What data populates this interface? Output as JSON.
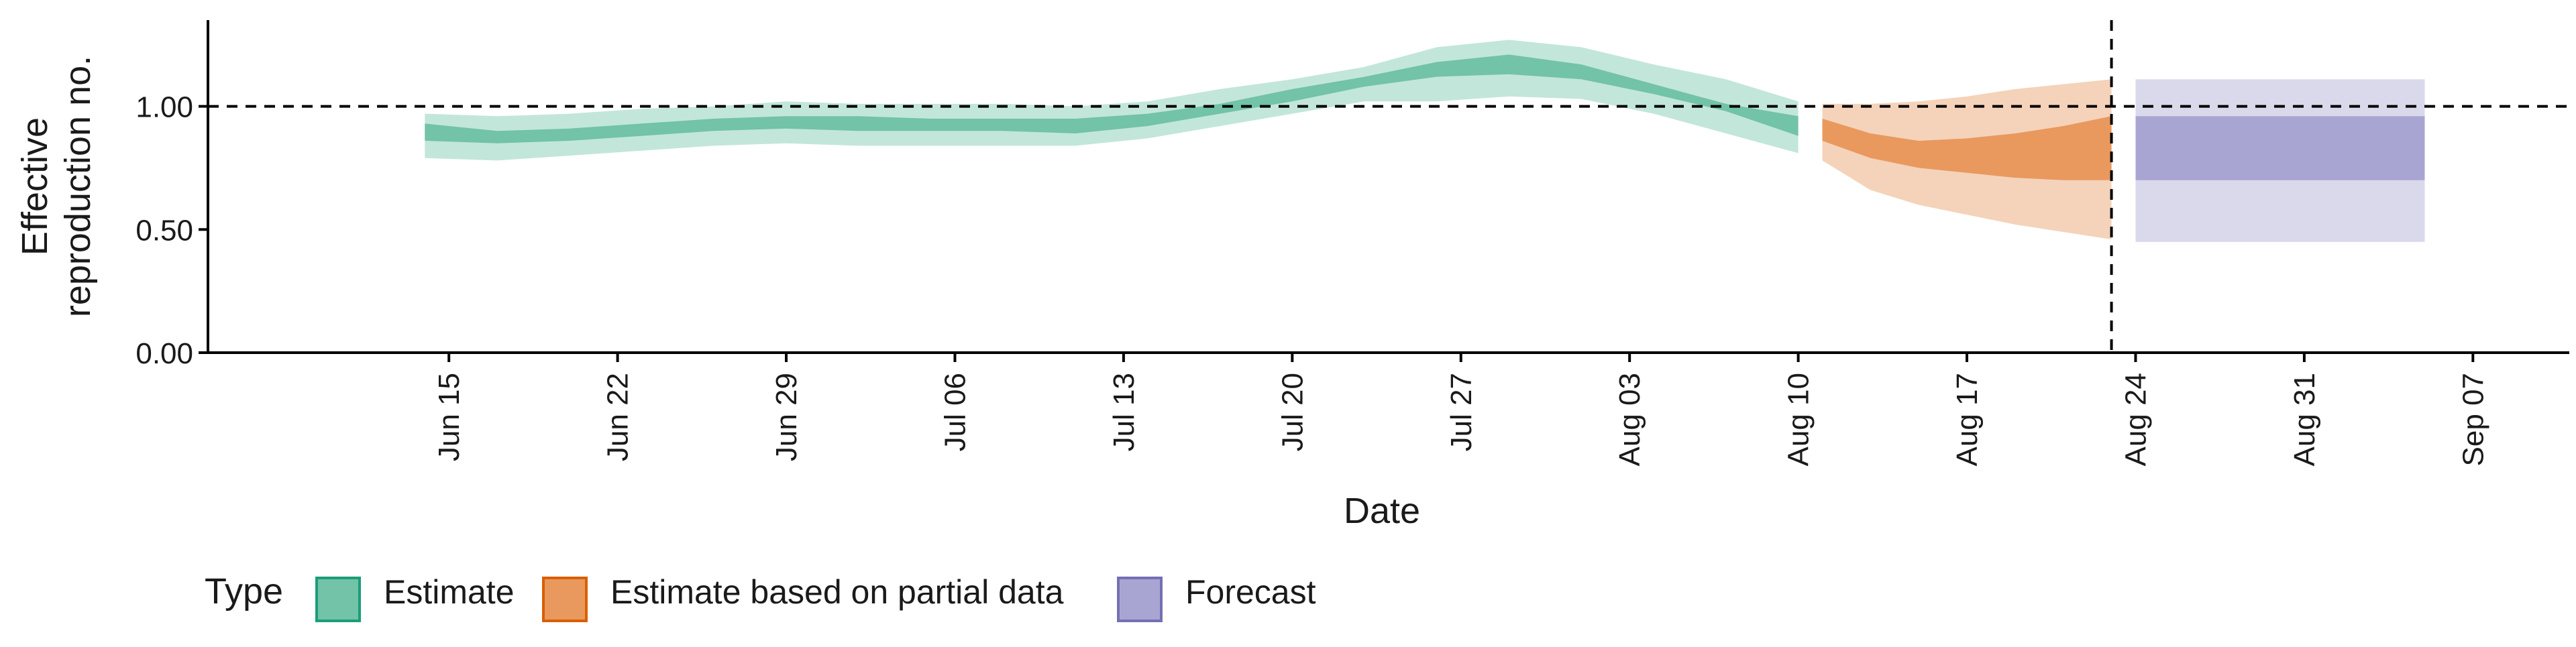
{
  "chart_data": {
    "type": "area",
    "xlabel": "Date",
    "ylabel_lines": [
      "Effective",
      "reproduction no."
    ],
    "ylim": [
      0,
      1.35
    ],
    "yticks": [
      0.0,
      0.5,
      1.0
    ],
    "ytick_labels": [
      "0.00",
      "0.50",
      "1.00"
    ],
    "xlim": [
      "2020-06-05",
      "2020-09-11"
    ],
    "xticks": [
      "2020-06-15",
      "2020-06-22",
      "2020-06-29",
      "2020-07-06",
      "2020-07-13",
      "2020-07-20",
      "2020-07-27",
      "2020-08-03",
      "2020-08-10",
      "2020-08-17",
      "2020-08-24",
      "2020-08-31",
      "2020-09-07"
    ],
    "xtick_labels": [
      "Jun 15",
      "Jun 22",
      "Jun 29",
      "Jul 06",
      "Jul 13",
      "Jul 20",
      "Jul 27",
      "Aug 03",
      "Aug 10",
      "Aug 17",
      "Aug 24",
      "Aug 31",
      "Sep 07"
    ],
    "reference_hline": 1.0,
    "reference_vline": "2020-08-23",
    "legend": {
      "title": "Type",
      "position": "bottom-left",
      "items": [
        {
          "label": "Estimate",
          "fill": "#72C3A8",
          "border": "#1B9E77"
        },
        {
          "label": "Estimate based on partial data",
          "fill": "#E9995E",
          "border": "#D95F02"
        },
        {
          "label": "Forecast",
          "fill": "#A9A5D2",
          "border": "#7570B3"
        }
      ]
    },
    "colors": {
      "estimate_outer": "#C3E6DA",
      "estimate_inner": "#72C3A8",
      "partial_outer": "#F4D3BA",
      "partial_inner": "#E9995E",
      "forecast_outer": "#DAD9EB",
      "forecast_inner": "#A9A5D2"
    },
    "series": [
      {
        "name": "Estimate",
        "x": [
          "2020-06-14",
          "2020-06-17",
          "2020-06-20",
          "2020-06-23",
          "2020-06-26",
          "2020-06-29",
          "2020-07-02",
          "2020-07-05",
          "2020-07-08",
          "2020-07-11",
          "2020-07-14",
          "2020-07-17",
          "2020-07-20",
          "2020-07-23",
          "2020-07-26",
          "2020-07-29",
          "2020-08-01",
          "2020-08-04",
          "2020-08-07",
          "2020-08-10"
        ],
        "outer_upper": [
          0.97,
          0.96,
          0.97,
          0.99,
          1.0,
          1.02,
          1.01,
          1.01,
          1.01,
          1.0,
          1.02,
          1.07,
          1.11,
          1.16,
          1.24,
          1.27,
          1.24,
          1.17,
          1.11,
          1.02
        ],
        "inner_upper": [
          0.93,
          0.9,
          0.91,
          0.93,
          0.95,
          0.96,
          0.96,
          0.95,
          0.95,
          0.95,
          0.97,
          1.01,
          1.07,
          1.12,
          1.18,
          1.21,
          1.17,
          1.09,
          1.01,
          0.96
        ],
        "inner_lower": [
          0.86,
          0.85,
          0.86,
          0.88,
          0.9,
          0.91,
          0.9,
          0.9,
          0.9,
          0.89,
          0.92,
          0.97,
          1.02,
          1.08,
          1.12,
          1.13,
          1.11,
          1.05,
          0.98,
          0.88
        ],
        "outer_lower": [
          0.79,
          0.78,
          0.8,
          0.82,
          0.84,
          0.85,
          0.84,
          0.84,
          0.84,
          0.84,
          0.87,
          0.92,
          0.97,
          1.02,
          1.02,
          1.04,
          1.03,
          0.97,
          0.89,
          0.81
        ]
      },
      {
        "name": "Estimate based on partial data",
        "x": [
          "2020-08-11",
          "2020-08-13",
          "2020-08-15",
          "2020-08-17",
          "2020-08-19",
          "2020-08-21",
          "2020-08-23"
        ],
        "outer_upper": [
          1.01,
          1.01,
          1.02,
          1.04,
          1.07,
          1.09,
          1.11
        ],
        "inner_upper": [
          0.95,
          0.89,
          0.86,
          0.87,
          0.89,
          0.92,
          0.96
        ],
        "inner_lower": [
          0.86,
          0.79,
          0.75,
          0.73,
          0.71,
          0.7,
          0.7
        ],
        "outer_lower": [
          0.78,
          0.66,
          0.6,
          0.56,
          0.52,
          0.49,
          0.46
        ]
      },
      {
        "name": "Forecast",
        "x": [
          "2020-08-24",
          "2020-09-05"
        ],
        "outer_upper": [
          1.11,
          1.11
        ],
        "inner_upper": [
          0.96,
          0.96
        ],
        "inner_lower": [
          0.7,
          0.7
        ],
        "outer_lower": [
          0.45,
          0.45
        ]
      }
    ]
  }
}
